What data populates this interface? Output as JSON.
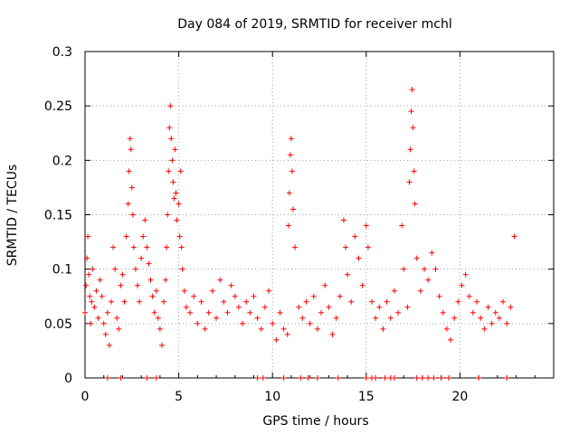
{
  "chart_data": {
    "type": "scatter",
    "title": "Day 084 of 2019, SRMTID for receiver mchl",
    "xlabel": "GPS time / hours",
    "ylabel": "SRMTID / TECUs",
    "xlim": [
      0,
      25
    ],
    "ylim": [
      0,
      0.3
    ],
    "x_ticks": [
      0,
      5,
      10,
      15,
      20
    ],
    "x_tick_labels": [
      "0",
      "5",
      "10",
      "15",
      "20"
    ],
    "y_ticks": [
      0,
      0.05,
      0.1,
      0.15,
      0.2,
      0.25,
      0.3
    ],
    "y_tick_labels": [
      "0",
      "0.05",
      "0.1",
      "0.15",
      "0.2",
      "0.25",
      "0.3"
    ],
    "grid": true,
    "marker": "plus",
    "series_color": "#ff0000",
    "series": [
      {
        "name": "SRMTID",
        "points": [
          [
            0.0,
            0.06
          ],
          [
            0.05,
            0.085
          ],
          [
            0.1,
            0.11
          ],
          [
            0.15,
            0.13
          ],
          [
            0.2,
            0.095
          ],
          [
            0.25,
            0.075
          ],
          [
            0.3,
            0.05
          ],
          [
            0.35,
            0.07
          ],
          [
            0.4,
            0.1
          ],
          [
            0.5,
            0.065
          ],
          [
            0.6,
            0.08
          ],
          [
            0.7,
            0.055
          ],
          [
            0.8,
            0.09
          ],
          [
            0.9,
            0.075
          ],
          [
            1.0,
            0.05
          ],
          [
            1.1,
            0.04
          ],
          [
            1.2,
            0.06
          ],
          [
            1.3,
            0.03
          ],
          [
            1.4,
            0.07
          ],
          [
            1.5,
            0.12
          ],
          [
            1.6,
            0.1
          ],
          [
            1.7,
            0.055
          ],
          [
            1.8,
            0.045
          ],
          [
            1.9,
            0.085
          ],
          [
            2.0,
            0.095
          ],
          [
            2.1,
            0.07
          ],
          [
            2.2,
            0.13
          ],
          [
            2.3,
            0.16
          ],
          [
            2.35,
            0.19
          ],
          [
            2.4,
            0.22
          ],
          [
            2.45,
            0.21
          ],
          [
            2.5,
            0.175
          ],
          [
            2.55,
            0.15
          ],
          [
            2.6,
            0.12
          ],
          [
            2.7,
            0.1
          ],
          [
            2.8,
            0.085
          ],
          [
            2.9,
            0.07
          ],
          [
            3.0,
            0.11
          ],
          [
            3.1,
            0.13
          ],
          [
            3.2,
            0.145
          ],
          [
            3.3,
            0.12
          ],
          [
            3.4,
            0.105
          ],
          [
            3.5,
            0.09
          ],
          [
            3.6,
            0.075
          ],
          [
            3.7,
            0.06
          ],
          [
            3.8,
            0.08
          ],
          [
            3.9,
            0.055
          ],
          [
            4.0,
            0.045
          ],
          [
            4.1,
            0.03
          ],
          [
            4.2,
            0.07
          ],
          [
            4.3,
            0.09
          ],
          [
            4.35,
            0.12
          ],
          [
            4.4,
            0.15
          ],
          [
            4.45,
            0.19
          ],
          [
            4.5,
            0.23
          ],
          [
            4.55,
            0.25
          ],
          [
            4.6,
            0.22
          ],
          [
            4.65,
            0.2
          ],
          [
            4.7,
            0.18
          ],
          [
            4.75,
            0.165
          ],
          [
            4.8,
            0.21
          ],
          [
            4.85,
            0.17
          ],
          [
            4.9,
            0.145
          ],
          [
            5.0,
            0.16
          ],
          [
            5.05,
            0.13
          ],
          [
            5.1,
            0.19
          ],
          [
            5.15,
            0.12
          ],
          [
            5.2,
            0.1
          ],
          [
            5.3,
            0.08
          ],
          [
            5.4,
            0.065
          ],
          [
            5.6,
            0.06
          ],
          [
            5.8,
            0.075
          ],
          [
            6.0,
            0.05
          ],
          [
            6.2,
            0.07
          ],
          [
            6.4,
            0.045
          ],
          [
            6.6,
            0.06
          ],
          [
            6.8,
            0.08
          ],
          [
            7.0,
            0.055
          ],
          [
            7.2,
            0.09
          ],
          [
            7.4,
            0.07
          ],
          [
            7.6,
            0.06
          ],
          [
            7.8,
            0.085
          ],
          [
            8.0,
            0.075
          ],
          [
            8.2,
            0.065
          ],
          [
            8.4,
            0.05
          ],
          [
            8.6,
            0.07
          ],
          [
            8.8,
            0.06
          ],
          [
            9.0,
            0.075
          ],
          [
            9.2,
            0.055
          ],
          [
            9.4,
            0.045
          ],
          [
            9.6,
            0.065
          ],
          [
            9.8,
            0.08
          ],
          [
            10.0,
            0.05
          ],
          [
            10.2,
            0.035
          ],
          [
            10.4,
            0.06
          ],
          [
            10.6,
            0.045
          ],
          [
            10.8,
            0.04
          ],
          [
            10.85,
            0.14
          ],
          [
            10.9,
            0.17
          ],
          [
            10.95,
            0.205
          ],
          [
            11.0,
            0.22
          ],
          [
            11.05,
            0.19
          ],
          [
            11.1,
            0.155
          ],
          [
            11.2,
            0.12
          ],
          [
            11.4,
            0.065
          ],
          [
            11.6,
            0.055
          ],
          [
            11.8,
            0.07
          ],
          [
            12.0,
            0.05
          ],
          [
            12.2,
            0.075
          ],
          [
            12.4,
            0.045
          ],
          [
            12.6,
            0.06
          ],
          [
            12.8,
            0.085
          ],
          [
            13.0,
            0.065
          ],
          [
            13.2,
            0.04
          ],
          [
            13.4,
            0.055
          ],
          [
            13.6,
            0.075
          ],
          [
            13.8,
            0.145
          ],
          [
            13.9,
            0.12
          ],
          [
            14.0,
            0.095
          ],
          [
            14.2,
            0.07
          ],
          [
            14.4,
            0.13
          ],
          [
            14.6,
            0.11
          ],
          [
            14.8,
            0.085
          ],
          [
            15.0,
            0.14
          ],
          [
            15.1,
            0.12
          ],
          [
            15.3,
            0.07
          ],
          [
            15.5,
            0.055
          ],
          [
            15.7,
            0.065
          ],
          [
            15.9,
            0.045
          ],
          [
            16.1,
            0.07
          ],
          [
            16.3,
            0.055
          ],
          [
            16.5,
            0.08
          ],
          [
            16.7,
            0.06
          ],
          [
            16.9,
            0.14
          ],
          [
            17.0,
            0.1
          ],
          [
            17.2,
            0.065
          ],
          [
            17.3,
            0.18
          ],
          [
            17.35,
            0.21
          ],
          [
            17.4,
            0.245
          ],
          [
            17.45,
            0.265
          ],
          [
            17.5,
            0.23
          ],
          [
            17.55,
            0.19
          ],
          [
            17.6,
            0.16
          ],
          [
            17.7,
            0.11
          ],
          [
            17.9,
            0.08
          ],
          [
            18.1,
            0.1
          ],
          [
            18.3,
            0.09
          ],
          [
            18.5,
            0.115
          ],
          [
            18.7,
            0.1
          ],
          [
            18.9,
            0.075
          ],
          [
            19.1,
            0.06
          ],
          [
            19.3,
            0.045
          ],
          [
            19.5,
            0.035
          ],
          [
            19.7,
            0.055
          ],
          [
            19.9,
            0.07
          ],
          [
            20.1,
            0.085
          ],
          [
            20.3,
            0.095
          ],
          [
            20.5,
            0.075
          ],
          [
            20.7,
            0.06
          ],
          [
            20.9,
            0.07
          ],
          [
            21.1,
            0.055
          ],
          [
            21.3,
            0.045
          ],
          [
            21.5,
            0.065
          ],
          [
            21.7,
            0.05
          ],
          [
            21.9,
            0.06
          ],
          [
            22.1,
            0.055
          ],
          [
            22.3,
            0.07
          ],
          [
            22.5,
            0.05
          ],
          [
            22.7,
            0.065
          ],
          [
            22.9,
            0.13
          ],
          [
            1.2,
            0.0
          ],
          [
            1.9,
            0.0
          ],
          [
            3.3,
            0.0
          ],
          [
            3.8,
            0.0
          ],
          [
            9.2,
            0.0
          ],
          [
            9.5,
            0.0
          ],
          [
            10.6,
            0.0
          ],
          [
            11.5,
            0.0
          ],
          [
            11.9,
            0.0
          ],
          [
            12.4,
            0.0
          ],
          [
            13.5,
            0.0
          ],
          [
            15.0,
            0.0
          ],
          [
            15.3,
            0.0
          ],
          [
            15.5,
            0.0
          ],
          [
            16.0,
            0.0
          ],
          [
            16.3,
            0.0
          ],
          [
            16.5,
            0.0
          ],
          [
            17.7,
            0.0
          ],
          [
            18.0,
            0.0
          ],
          [
            18.3,
            0.0
          ],
          [
            18.6,
            0.0
          ],
          [
            19.0,
            0.0
          ],
          [
            19.4,
            0.0
          ],
          [
            21.0,
            0.0
          ],
          [
            22.5,
            0.0
          ]
        ]
      }
    ]
  }
}
